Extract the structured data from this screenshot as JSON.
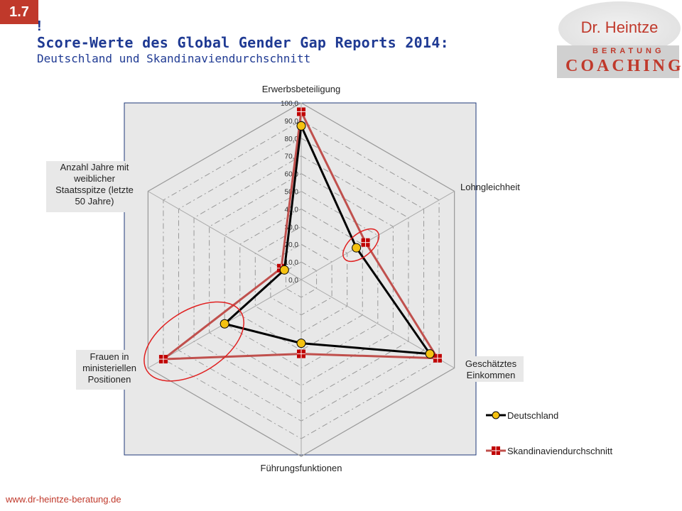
{
  "header": {
    "badge": "1.7",
    "bullet": "!",
    "title": "Score-Werte des Global Gender Gap Reports 2014:",
    "subtitle": "Deutschland und Skandinaviendurchschnitt"
  },
  "logo": {
    "name": "Dr. Heintze",
    "sub": "BERATUNG",
    "main": "COACHING"
  },
  "footer": {
    "url": "www.dr-heintze-beratung.de"
  },
  "chart_data": {
    "type": "radar",
    "axes": [
      "Erwerbsbeteiligung",
      "Lohngleichheit",
      "Geschätztes Einkommen",
      "Führungsfunktionen",
      "Frauen in ministeriellen Positionen",
      "Anzahl Jahre mit weiblicher Staatsspitze (letzte 50 Jahre)"
    ],
    "ticks": [
      "0,0",
      "10,0",
      "20,0",
      "30,0",
      "40,0",
      "50,0",
      "60,0",
      "70,0",
      "80,0",
      "90,0",
      "100,0"
    ],
    "rlim": [
      0,
      100
    ],
    "grid": true,
    "legend_position": "bottom-right",
    "series": [
      {
        "name": "Deutschland",
        "values": [
          87,
          36,
          84,
          36,
          50,
          11
        ],
        "color": "#000000",
        "marker": "circle",
        "marker_color": "#f5c211"
      },
      {
        "name": "Skandinaviendurchschnitt",
        "values": [
          95,
          42,
          89,
          42,
          90,
          13
        ],
        "color": "#c0504d",
        "marker": "square",
        "marker_color": "#c00000"
      }
    ],
    "highlight_color": "#e02020"
  }
}
